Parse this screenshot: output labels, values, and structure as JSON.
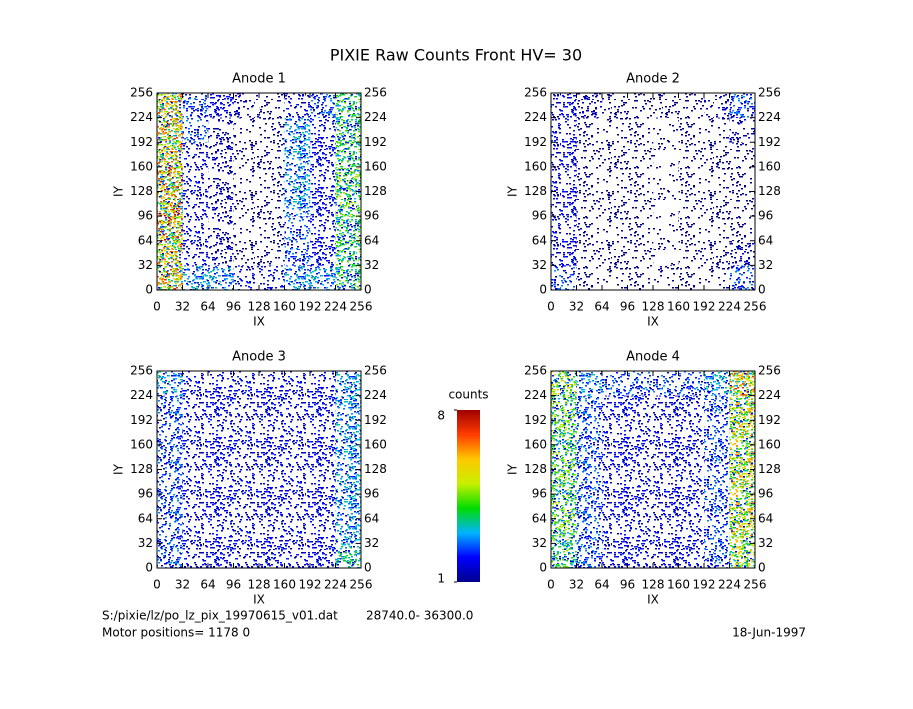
{
  "chart_data": {
    "type": "heatmap",
    "title": "PIXIE Raw Counts Front HV= 30",
    "panels": [
      {
        "title": "Anode 1",
        "xlabel": "IX",
        "ylabel": "IY",
        "xlim": [
          0,
          256
        ],
        "ylim": [
          0,
          256
        ],
        "xticks": [
          0,
          32,
          64,
          96,
          128,
          160,
          192,
          224,
          256
        ],
        "yticks": [
          0,
          32,
          64,
          96,
          128,
          160,
          192,
          224,
          256
        ],
        "z": [
          [
            6,
            3,
            3,
            2,
            2,
            3,
            3,
            4
          ],
          [
            6,
            2,
            1.5,
            1.2,
            1,
            2.5,
            2,
            4
          ],
          [
            6.5,
            2,
            1.5,
            1.2,
            1,
            2.5,
            2,
            4
          ],
          [
            6.5,
            2,
            1.5,
            1.2,
            1,
            3,
            2,
            4.5
          ],
          [
            6.5,
            2,
            1.5,
            1.2,
            1,
            3,
            2,
            4.5
          ],
          [
            6,
            2,
            1.5,
            1.2,
            1,
            3,
            2,
            4
          ],
          [
            6,
            2.5,
            1.5,
            1.2,
            1,
            3,
            2,
            4
          ],
          [
            6,
            2.5,
            2,
            1.5,
            1.2,
            2,
            2.5,
            4
          ]
        ]
      },
      {
        "title": "Anode 2",
        "xlabel": "IX",
        "ylabel": "IY",
        "xlim": [
          0,
          256
        ],
        "ylim": [
          0,
          256
        ],
        "xticks": [
          0,
          32,
          64,
          96,
          128,
          160,
          192,
          224,
          256
        ],
        "yticks": [
          0,
          32,
          64,
          96,
          128,
          160,
          192,
          224,
          256
        ],
        "z": [
          [
            2.5,
            1,
            1,
            1,
            1,
            1,
            1,
            2.5
          ],
          [
            2,
            1.2,
            1,
            0.8,
            0.6,
            0.8,
            1,
            1.5
          ],
          [
            2,
            1.2,
            1,
            0.8,
            0.6,
            0.8,
            1,
            1.2
          ],
          [
            2,
            1.2,
            1,
            0.8,
            0.6,
            0.8,
            1,
            1.2
          ],
          [
            2,
            1.2,
            1,
            0.8,
            0.6,
            0.8,
            1,
            1.2
          ],
          [
            2,
            1.2,
            1,
            0.8,
            0.6,
            0.8,
            1,
            1.2
          ],
          [
            2,
            1.2,
            1,
            0.8,
            0.6,
            0.8,
            1,
            1.5
          ],
          [
            2,
            1.5,
            1.2,
            1,
            0.8,
            1,
            1.5,
            2.5
          ]
        ]
      },
      {
        "title": "Anode 3",
        "xlabel": "IX",
        "ylabel": "IY",
        "xlim": [
          0,
          256
        ],
        "ylim": [
          0,
          256
        ],
        "xticks": [
          0,
          32,
          64,
          96,
          128,
          160,
          192,
          224,
          256
        ],
        "yticks": [
          0,
          32,
          64,
          96,
          128,
          160,
          192,
          224,
          256
        ],
        "z": [
          [
            2.5,
            2,
            2,
            1.8,
            1.8,
            2,
            2.2,
            3.5
          ],
          [
            2.5,
            2,
            2,
            2,
            1.8,
            2,
            2,
            3
          ],
          [
            2.5,
            2,
            2,
            2,
            1.8,
            2,
            2,
            3
          ],
          [
            2.5,
            2,
            2,
            2,
            1.8,
            2,
            2,
            3
          ],
          [
            2.5,
            2,
            2,
            2,
            1.8,
            2,
            2,
            3
          ],
          [
            2.5,
            2,
            2,
            2,
            1.8,
            2,
            2,
            3
          ],
          [
            2.5,
            2,
            2,
            2,
            1.8,
            2,
            2,
            3
          ],
          [
            3,
            2,
            2,
            2,
            1.8,
            2,
            2.2,
            3
          ]
        ]
      },
      {
        "title": "Anode 4",
        "xlabel": "IX",
        "ylabel": "IY",
        "xlim": [
          0,
          256
        ],
        "ylim": [
          0,
          256
        ],
        "xticks": [
          0,
          32,
          64,
          96,
          128,
          160,
          192,
          224,
          256
        ],
        "yticks": [
          0,
          32,
          64,
          96,
          128,
          160,
          192,
          224,
          256
        ],
        "z": [
          [
            4,
            2.5,
            2,
            2,
            2,
            2,
            2.5,
            5
          ],
          [
            4.5,
            2.5,
            2,
            2,
            2,
            2,
            2.5,
            5.5
          ],
          [
            4.5,
            2.5,
            2,
            2,
            2,
            2,
            2.5,
            5.5
          ],
          [
            4.5,
            2.5,
            2,
            2,
            2,
            2,
            2.5,
            5.5
          ],
          [
            4.5,
            2.5,
            2,
            2,
            2,
            2,
            2.5,
            5.5
          ],
          [
            4.5,
            2.5,
            2,
            2,
            2,
            2,
            2.5,
            5.5
          ],
          [
            4.5,
            2.5,
            2,
            2,
            2,
            2,
            2.5,
            5.5
          ],
          [
            5,
            3,
            2.5,
            2.5,
            2.5,
            2.5,
            3,
            6
          ]
        ]
      }
    ],
    "colorbar": {
      "label": "counts",
      "lim": [
        1,
        8
      ],
      "ticks": [
        1,
        8
      ],
      "colors": [
        "#00008c",
        "#0000ff",
        "#00b4ff",
        "#00dc00",
        "#c8f000",
        "#ffc800",
        "#ff3c00",
        "#a00000"
      ]
    }
  },
  "footer": {
    "file": "S:/pixie/lz/po_lz_pix_19970615_v01.dat",
    "range": "28740.0- 36300.0",
    "motor": "Motor positions= 1178 0",
    "date": "18-Jun-1997"
  }
}
